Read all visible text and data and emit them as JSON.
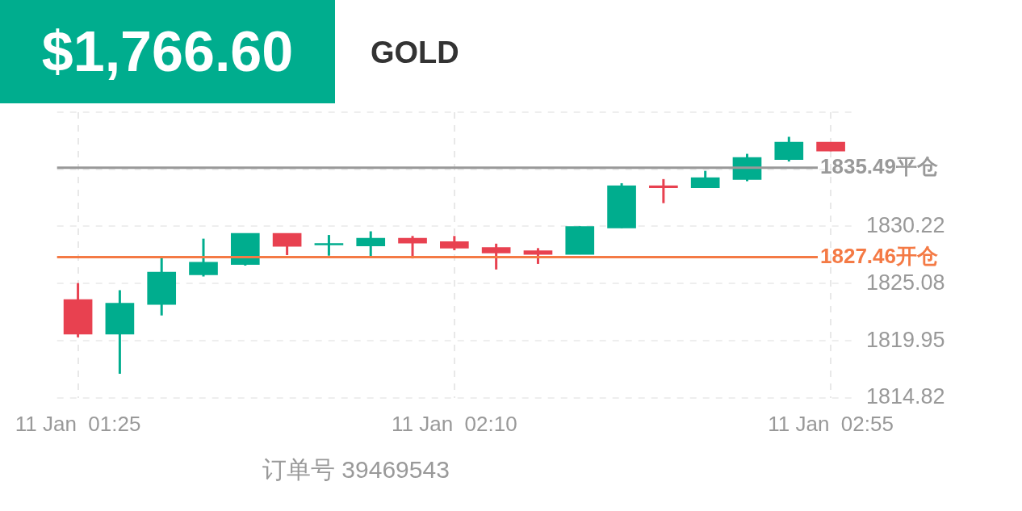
{
  "chart_data": {
    "type": "candlestick",
    "title": "GOLD",
    "subtitle": "$1,766.60",
    "categories": [
      "11 Jan  01:25",
      null,
      null,
      null,
      null,
      null,
      null,
      null,
      null,
      "11 Jan  02:10",
      null,
      null,
      null,
      null,
      null,
      null,
      null,
      null,
      "11 Jan  02:55"
    ],
    "ohlc": [
      [
        1823.65,
        1825.13,
        1820.26,
        1820.55
      ],
      [
        1820.55,
        1824.49,
        1816.98,
        1823.33
      ],
      [
        1823.21,
        1827.39,
        1822.22,
        1826.11
      ],
      [
        1825.87,
        1829.12,
        1825.72,
        1827.0
      ],
      [
        1826.8,
        1829.6,
        1826.7,
        1829.6
      ],
      [
        1829.6,
        1829.6,
        1827.64,
        1828.42
      ],
      [
        1828.55,
        1829.45,
        1827.59,
        1828.65
      ],
      [
        1828.47,
        1829.78,
        1827.51,
        1829.16
      ],
      [
        1829.16,
        1829.36,
        1827.34,
        1828.72
      ],
      [
        1828.86,
        1829.36,
        1828.08,
        1828.27
      ],
      [
        1828.33,
        1828.67,
        1826.35,
        1827.83
      ],
      [
        1828.03,
        1828.27,
        1826.85,
        1827.71
      ],
      [
        1827.71,
        1830.22,
        1827.71,
        1830.22
      ],
      [
        1830.07,
        1834.1,
        1830.07,
        1833.88
      ],
      [
        1833.88,
        1834.47,
        1832.31,
        1833.69
      ],
      [
        1833.69,
        1835.21,
        1833.69,
        1834.6
      ],
      [
        1834.43,
        1836.74,
        1834.28,
        1836.42
      ],
      [
        1836.22,
        1838.27,
        1836.05,
        1837.79
      ],
      [
        1837.79,
        1837.79,
        1836.98,
        1836.98
      ]
    ],
    "colors": [
      "#e84150",
      "#00ad8e",
      "#00ad8e",
      "#00ad8e",
      "#00ad8e",
      "#e84150",
      "#00ad8e",
      "#00ad8e",
      "#e84150",
      "#e84150",
      "#e84150",
      "#e84150",
      "#00ad8e",
      "#00ad8e",
      "#e84150",
      "#00ad8e",
      "#00ad8e",
      "#00ad8e",
      "#e84150"
    ],
    "ylim": [
      1814.82,
      1840.48
    ],
    "yticks": [
      1814.82,
      1819.95,
      1825.08,
      1830.22,
      {
        "value": 1835.35,
        "label": null
      },
      {
        "value": 1840.48,
        "label": null
      }
    ],
    "grid": true,
    "ref_lines": [
      {
        "axis": "y",
        "value": 1835.49,
        "label": "1835.49平仓",
        "color": "#999999"
      },
      {
        "axis": "y",
        "value": 1827.46,
        "label": "1827.46开仓",
        "color": "#f47a45"
      }
    ],
    "annotations": [
      "订单号 39469543"
    ]
  }
}
